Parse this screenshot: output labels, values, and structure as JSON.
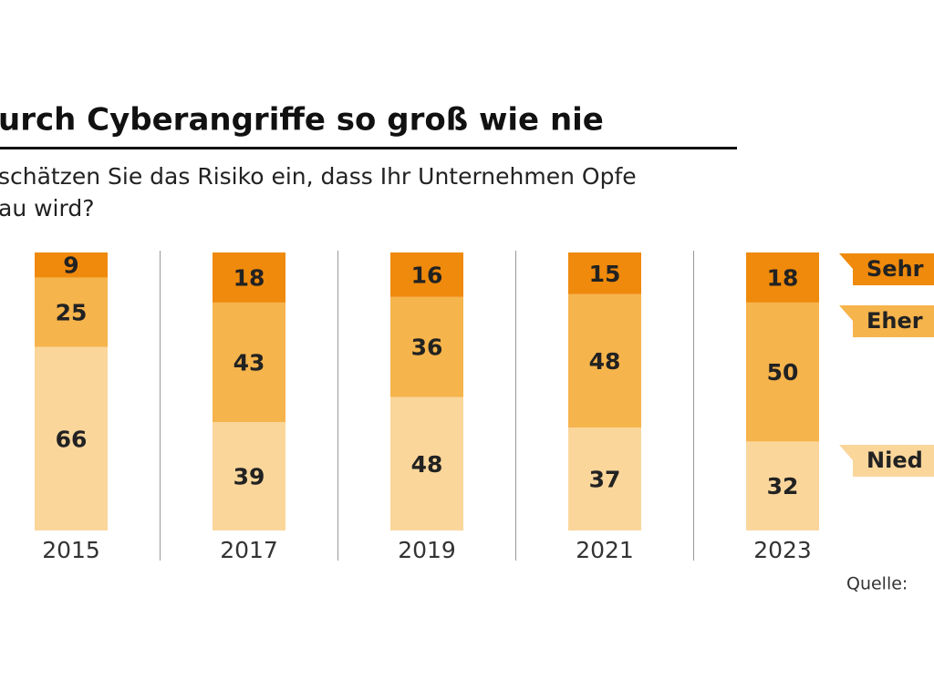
{
  "chart_data": {
    "type": "stacked-bar",
    "title": "urch Cyberangriffe so groß wie nie",
    "subtitle": [
      "schätzen Sie das Risiko ein, dass Ihr Unternehmen Opfe",
      "au wird?"
    ],
    "categories": [
      "2015",
      "2017",
      "2019",
      "2021",
      "2023"
    ],
    "series": [
      {
        "name": "Nied",
        "color": "#fad69b",
        "values": [
          66,
          39,
          48,
          37,
          32
        ]
      },
      {
        "name": "Eher",
        "color": "#f6b44c",
        "values": [
          25,
          43,
          36,
          48,
          50
        ]
      },
      {
        "name": "Sehr",
        "color": "#ef8a0c",
        "values": [
          9,
          18,
          16,
          15,
          18
        ]
      }
    ],
    "ylim": [
      0,
      100
    ],
    "source": "Quelle:"
  }
}
